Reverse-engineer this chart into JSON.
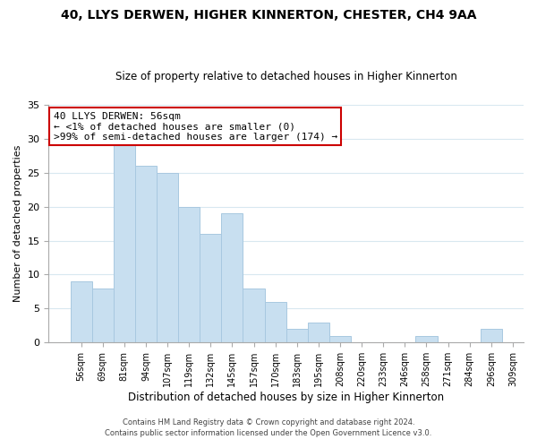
{
  "title": "40, LLYS DERWEN, HIGHER KINNERTON, CHESTER, CH4 9AA",
  "subtitle": "Size of property relative to detached houses in Higher Kinnerton",
  "xlabel": "Distribution of detached houses by size in Higher Kinnerton",
  "ylabel": "Number of detached properties",
  "bar_color": "#c8dff0",
  "bar_edge_color": "#a8c8e0",
  "bin_labels": [
    "56sqm",
    "69sqm",
    "81sqm",
    "94sqm",
    "107sqm",
    "119sqm",
    "132sqm",
    "145sqm",
    "157sqm",
    "170sqm",
    "183sqm",
    "195sqm",
    "208sqm",
    "220sqm",
    "233sqm",
    "246sqm",
    "258sqm",
    "271sqm",
    "284sqm",
    "296sqm",
    "309sqm"
  ],
  "values": [
    9,
    8,
    29,
    26,
    25,
    20,
    16,
    19,
    8,
    6,
    2,
    3,
    1,
    0,
    0,
    0,
    1,
    0,
    0,
    2
  ],
  "annotation_line1": "40 LLYS DERWEN: 56sqm",
  "annotation_line2": "← <1% of detached houses are smaller (0)",
  "annotation_line3": ">99% of semi-detached houses are larger (174) →",
  "annotation_box_color": "#ffffff",
  "annotation_box_edge_color": "#cc0000",
  "ylim": [
    0,
    35
  ],
  "yticks": [
    0,
    5,
    10,
    15,
    20,
    25,
    30,
    35
  ],
  "footer1": "Contains HM Land Registry data © Crown copyright and database right 2024.",
  "footer2": "Contains public sector information licensed under the Open Government Licence v3.0.",
  "background_color": "#ffffff",
  "grid_color": "#d8e8f0",
  "title_fontsize": 10,
  "subtitle_fontsize": 8.5,
  "ylabel_fontsize": 8,
  "xlabel_fontsize": 8.5,
  "tick_fontsize": 7,
  "annotation_fontsize": 8,
  "footer_fontsize": 6
}
